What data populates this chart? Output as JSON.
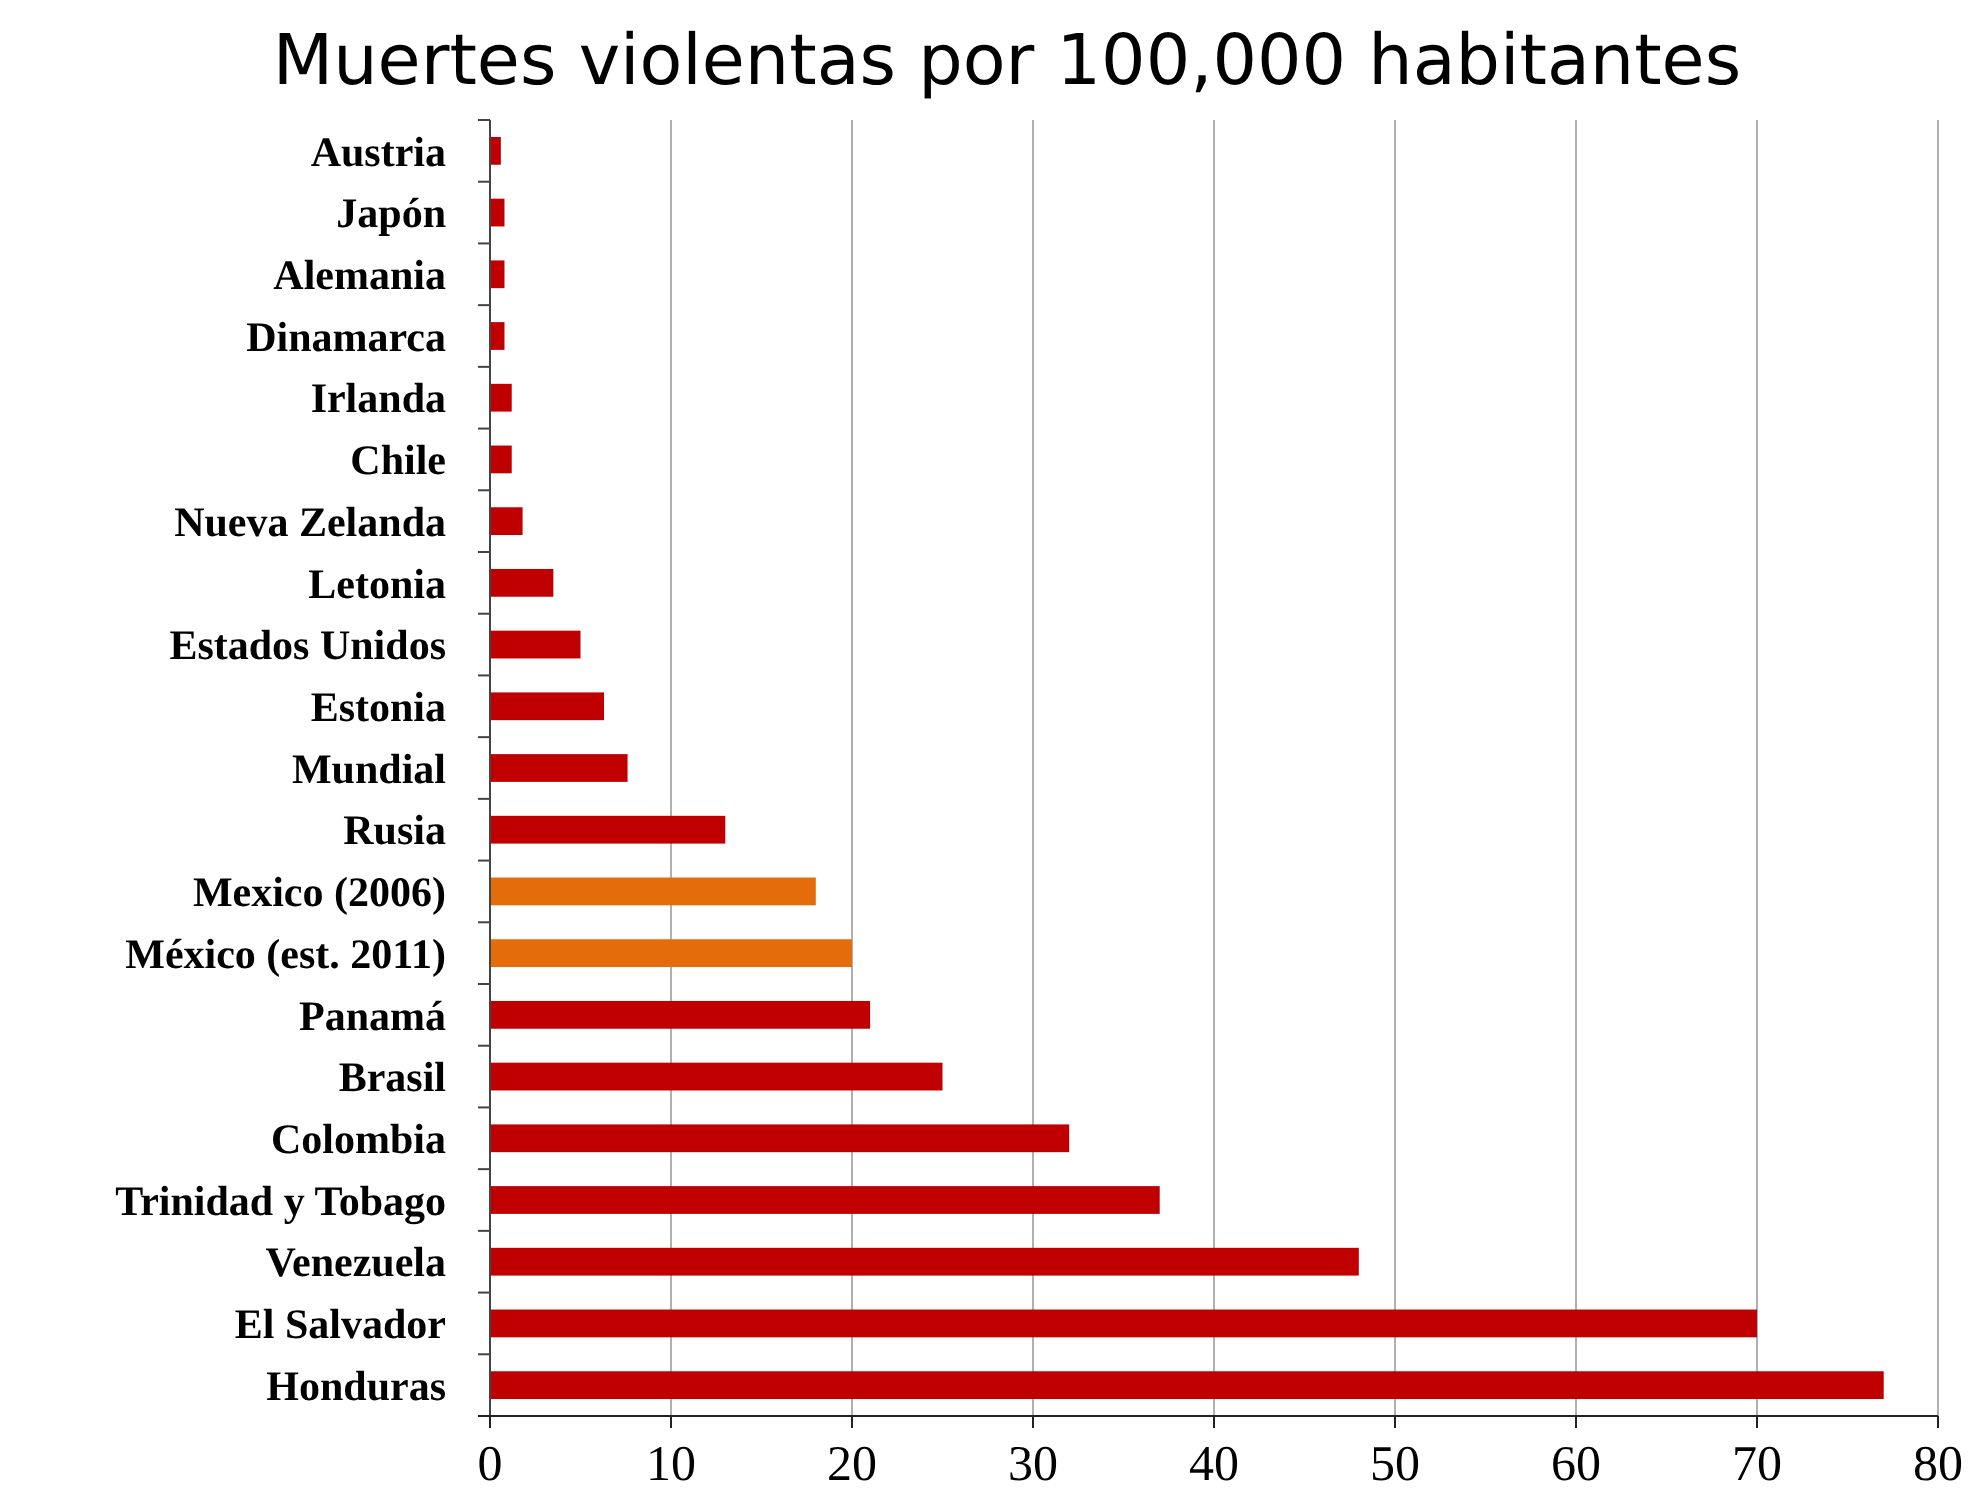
{
  "chart_data": {
    "type": "bar",
    "orientation": "horizontal",
    "title": "Muertes violentas por 100,000 habitantes",
    "categories": [
      "Austria",
      "Japón",
      "Alemania",
      "Dinamarca",
      "Irlanda",
      "Chile",
      "Nueva Zelanda",
      "Letonia",
      "Estados Unidos",
      "Estonia",
      "Mundial",
      "Rusia",
      "Mexico (2006)",
      "México (est. 2011)",
      "Panamá",
      "Brasil",
      "Colombia",
      "Trinidad y Tobago",
      "Venezuela",
      "El Salvador",
      "Honduras"
    ],
    "values": [
      0.6,
      0.8,
      0.8,
      0.8,
      1.2,
      1.2,
      1.8,
      3.5,
      5.0,
      6.3,
      7.6,
      13,
      18,
      20,
      21,
      25,
      32,
      37,
      48,
      70,
      77
    ],
    "colors": [
      "#c00000",
      "#c00000",
      "#c00000",
      "#c00000",
      "#c00000",
      "#c00000",
      "#c00000",
      "#c00000",
      "#c00000",
      "#c00000",
      "#c00000",
      "#c00000",
      "#e46c0a",
      "#e46c0a",
      "#c00000",
      "#c00000",
      "#c00000",
      "#c00000",
      "#c00000",
      "#c00000",
      "#c00000"
    ],
    "xlim": [
      0,
      80
    ],
    "xticks": [
      0,
      10,
      20,
      30,
      40,
      50,
      60,
      70,
      80
    ],
    "grid": "x"
  }
}
